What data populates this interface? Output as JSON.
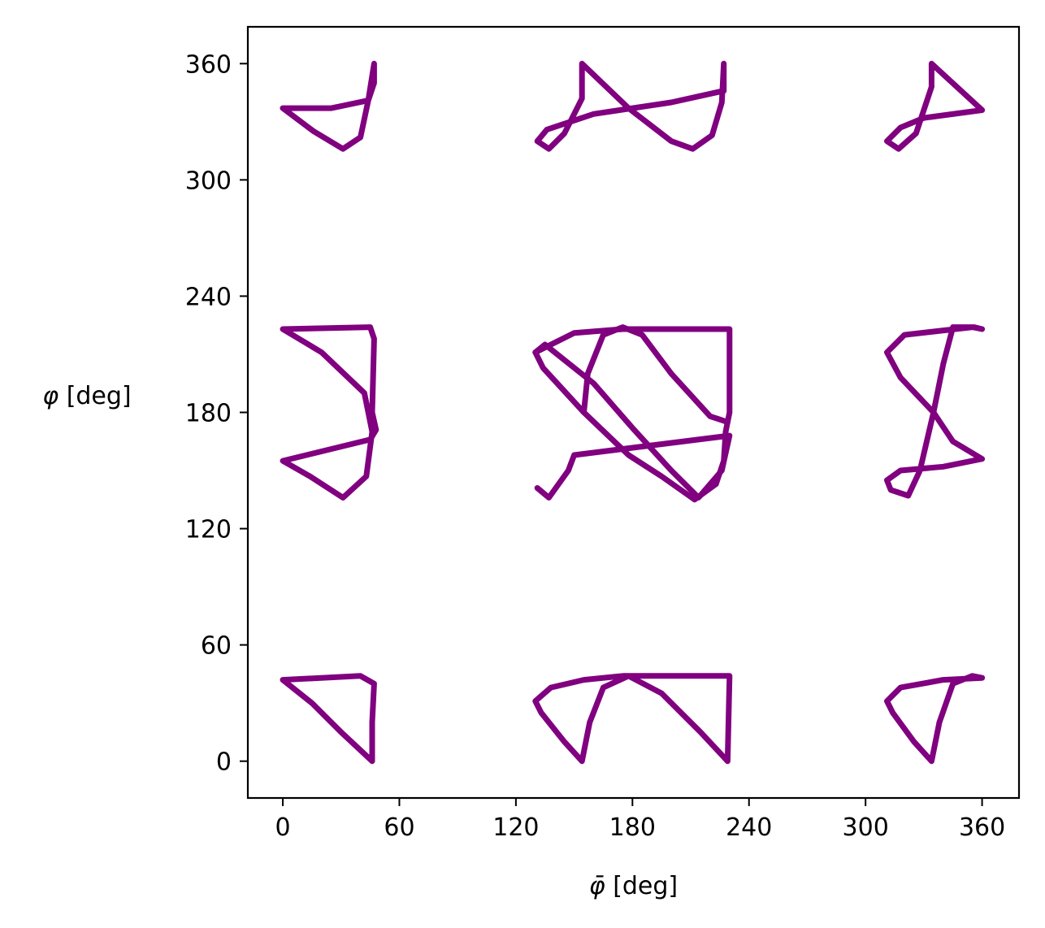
{
  "chart_data": {
    "type": "line",
    "title": "",
    "xlabel": {
      "symbol": "φ̄",
      "unit": "[deg]"
    },
    "ylabel": {
      "symbol": "φ",
      "unit": "[deg]"
    },
    "xlim": [
      -18,
      379
    ],
    "ylim": [
      -19,
      379
    ],
    "xticks": [
      0,
      60,
      120,
      180,
      240,
      300,
      360
    ],
    "yticks": [
      0,
      60,
      120,
      180,
      240,
      300,
      360
    ],
    "grid": false,
    "legend": "none",
    "line_color": "#800080",
    "series": [
      {
        "points": [
          [
            0,
            337
          ],
          [
            25,
            337
          ],
          [
            44,
            341
          ],
          [
            47,
            350
          ],
          [
            47,
            360
          ],
          [
            44,
            341
          ],
          [
            40,
            322
          ],
          [
            31,
            316
          ],
          [
            16,
            325
          ],
          [
            0,
            337
          ]
        ]
      },
      {
        "points": [
          [
            131,
            320
          ],
          [
            137,
            316
          ],
          [
            145,
            324
          ],
          [
            154,
            342
          ],
          [
            154,
            360
          ],
          [
            178,
            337
          ],
          [
            200,
            320
          ],
          [
            211,
            316
          ],
          [
            221,
            323
          ],
          [
            226,
            340
          ],
          [
            227,
            360
          ],
          [
            227,
            346
          ],
          [
            200,
            340
          ],
          [
            160,
            334
          ],
          [
            136,
            326
          ],
          [
            131,
            320
          ]
        ]
      },
      {
        "points": [
          [
            311,
            320
          ],
          [
            317,
            316
          ],
          [
            326,
            324
          ],
          [
            334,
            348
          ],
          [
            334,
            360
          ],
          [
            360,
            336
          ],
          [
            330,
            332
          ],
          [
            318,
            327
          ],
          [
            311,
            320
          ]
        ]
      },
      {
        "points": [
          [
            0,
            223
          ],
          [
            45,
            224
          ],
          [
            47,
            218
          ],
          [
            46,
            180
          ],
          [
            48,
            171
          ],
          [
            45,
            166
          ],
          [
            0,
            155
          ],
          [
            14,
            147
          ],
          [
            31,
            136
          ],
          [
            43,
            147
          ],
          [
            46,
            170
          ],
          [
            42,
            190
          ],
          [
            20,
            211
          ],
          [
            0,
            223
          ]
        ]
      },
      {
        "points": [
          [
            130,
            211
          ],
          [
            150,
            221
          ],
          [
            175,
            223
          ],
          [
            230,
            223
          ],
          [
            230,
            180
          ],
          [
            228,
            170
          ],
          [
            227,
            155
          ],
          [
            223,
            143
          ],
          [
            212,
            135
          ],
          [
            195,
            147
          ],
          [
            178,
            158
          ],
          [
            155,
            180
          ],
          [
            134,
            203
          ],
          [
            130,
            211
          ]
        ]
      },
      {
        "points": [
          [
            131,
            141
          ],
          [
            137,
            136
          ],
          [
            147,
            150
          ],
          [
            150,
            158
          ],
          [
            230,
            168
          ],
          [
            226,
            150
          ],
          [
            214,
            136
          ],
          [
            200,
            150
          ],
          [
            180,
            172
          ],
          [
            160,
            195
          ],
          [
            135,
            215
          ],
          [
            130,
            211
          ]
        ]
      },
      {
        "points": [
          [
            155,
            180
          ],
          [
            157,
            200
          ],
          [
            165,
            220
          ],
          [
            175,
            224
          ],
          [
            185,
            220
          ],
          [
            200,
            200
          ],
          [
            220,
            178
          ],
          [
            229,
            175
          ]
        ]
      },
      {
        "points": [
          [
            311,
            211
          ],
          [
            320,
            220
          ],
          [
            355,
            224
          ],
          [
            360,
            223
          ],
          [
            356,
            224
          ],
          [
            345,
            224
          ],
          [
            340,
            205
          ],
          [
            335,
            180
          ],
          [
            328,
            150
          ],
          [
            322,
            137
          ],
          [
            313,
            140
          ],
          [
            311,
            145
          ],
          [
            318,
            150
          ],
          [
            340,
            152
          ],
          [
            360,
            156
          ],
          [
            345,
            165
          ],
          [
            335,
            180
          ],
          [
            318,
            198
          ],
          [
            311,
            211
          ]
        ]
      },
      {
        "points": [
          [
            0,
            42
          ],
          [
            40,
            44
          ],
          [
            47,
            40
          ],
          [
            46,
            20
          ],
          [
            46,
            0
          ],
          [
            30,
            15
          ],
          [
            15,
            30
          ],
          [
            0,
            42
          ]
        ]
      },
      {
        "points": [
          [
            130,
            31
          ],
          [
            138,
            38
          ],
          [
            155,
            42
          ],
          [
            175,
            44
          ],
          [
            230,
            44
          ],
          [
            229,
            0
          ],
          [
            215,
            15
          ],
          [
            195,
            35
          ],
          [
            178,
            44
          ],
          [
            165,
            38
          ],
          [
            158,
            20
          ],
          [
            154,
            0
          ],
          [
            145,
            10
          ],
          [
            133,
            25
          ],
          [
            130,
            31
          ]
        ]
      },
      {
        "points": [
          [
            311,
            31
          ],
          [
            318,
            38
          ],
          [
            340,
            42
          ],
          [
            360,
            43
          ],
          [
            355,
            44
          ],
          [
            345,
            40
          ],
          [
            338,
            20
          ],
          [
            334,
            0
          ],
          [
            325,
            10
          ],
          [
            314,
            25
          ],
          [
            311,
            31
          ]
        ]
      }
    ]
  }
}
